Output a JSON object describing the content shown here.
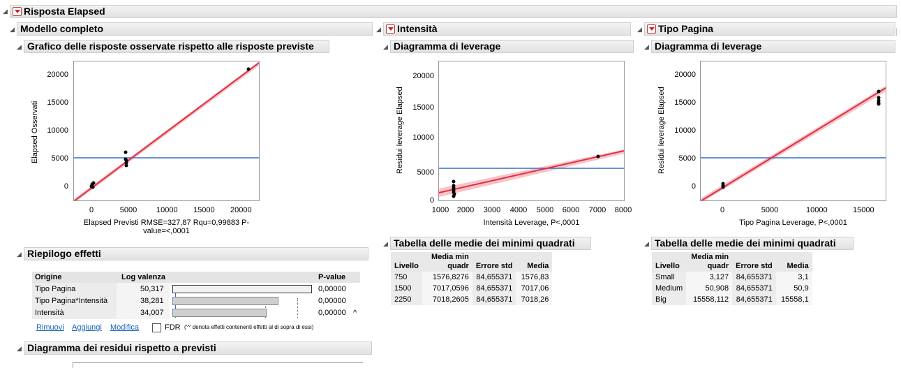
{
  "report": {
    "title": "Risposta Elapsed"
  },
  "full_model": {
    "title": "Modello completo",
    "plot_title": "Grafico delle risposte osservate rispetto alle risposte previste",
    "caption_line1": "Elapsed Previsti RMSE=327,87 Rqu=0,99883 P-",
    "caption_line2": "value=<,0001",
    "y_label": "Elapsed Osservati",
    "x_ticks": [
      "0",
      "5000",
      "10000",
      "15000",
      "20000"
    ],
    "y_ticks": [
      "0",
      "5000",
      "10000",
      "15000",
      "20000"
    ]
  },
  "intensity": {
    "title": "Intensità",
    "plot_title": "Diagramma di leverage",
    "caption": "Intensità Leverage, P<,0001",
    "y_label": "Residui leverage Elapsed",
    "x_ticks": [
      "1000",
      "2000",
      "3000",
      "4000",
      "5000",
      "6000",
      "7000",
      "8000"
    ],
    "y_ticks": [
      "0",
      "5000",
      "10000",
      "15000",
      "20000"
    ],
    "lsm_title": "Tabella delle medie dei minimi quadrati",
    "lsm_headers": [
      "Livello",
      "Media min quadr",
      "Errore std",
      "Media"
    ],
    "lsm_rows": [
      [
        "750",
        "1576,8276",
        "84,655371",
        "1576,83"
      ],
      [
        "1500",
        "7017,0596",
        "84,655371",
        "7017,06"
      ],
      [
        "2250",
        "7018,2605",
        "84,655371",
        "7018,26"
      ]
    ]
  },
  "page_type": {
    "title": "Tipo Pagina",
    "plot_title": "Diagramma di leverage",
    "caption": "Tipo Pagina Leverage, P<,0001",
    "y_label": "Residui leverage Elapsed",
    "x_ticks": [
      "0",
      "5000",
      "10000",
      "15000"
    ],
    "y_ticks": [
      "0",
      "5000",
      "10000",
      "15000",
      "20000"
    ],
    "lsm_title": "Tabella delle medie dei minimi quadrati",
    "lsm_headers": [
      "Livello",
      "Media min quadr",
      "Errore std",
      "Media"
    ],
    "lsm_rows": [
      [
        "Small",
        "3,127",
        "84,655371",
        "3,1"
      ],
      [
        "Medium",
        "50,908",
        "84,655371",
        "50,9"
      ],
      [
        "Big",
        "15558,112",
        "84,655371",
        "15558,1"
      ]
    ]
  },
  "effects": {
    "title": "Riepilogo effetti",
    "headers": {
      "source": "Origine",
      "logworth": "Log valenza",
      "pvalue": "P-value"
    },
    "rows": [
      {
        "source": "Tipo Pagina",
        "logworth": "50,317",
        "pvalue": "0,00000",
        "mark": ""
      },
      {
        "source": "Tipo Pagina*Intensità",
        "logworth": "38,281",
        "pvalue": "0,00000",
        "mark": ""
      },
      {
        "source": "Intensità",
        "logworth": "34,007",
        "pvalue": "0,00000",
        "mark": "^"
      }
    ],
    "bar_fractions": [
      1.0,
      0.761,
      0.676
    ],
    "links": {
      "remove": "Rimuovi",
      "add": "Aggiungi",
      "edit": "Modifica"
    },
    "fdr_label": "FDR",
    "footnote": "('^' denota effetti contenenti effetti al di sopra di essi)"
  },
  "residuals": {
    "title": "Diagramma dei residui rispetto a previsti"
  },
  "colors": {
    "fit_line": "#e03040",
    "mean_line": "#3070d0",
    "points": "#000000"
  }
}
